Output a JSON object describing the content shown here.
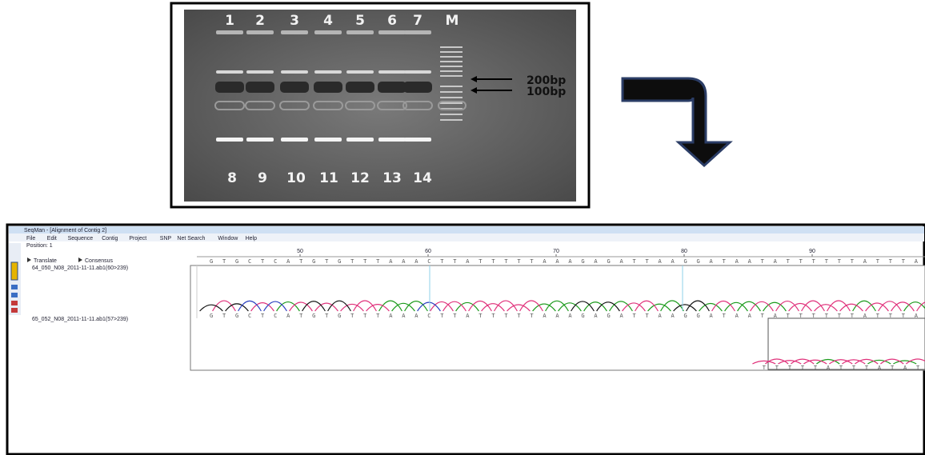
{
  "gel": {
    "top_lanes": [
      "1",
      "2",
      "3",
      "4",
      "5",
      "6",
      "7",
      "M"
    ],
    "bottom_lanes": [
      "8",
      "9",
      "10",
      "11",
      "12",
      "13",
      "14"
    ],
    "markers": [
      "200bp",
      "100bp"
    ]
  },
  "window": {
    "title": "SeqMan - [Alignment of Contig 2]",
    "menu": [
      "File",
      "Edit",
      "Sequence",
      "Contig",
      "Project",
      "SNP",
      "Net Search",
      "Window",
      "Help"
    ],
    "position": "Position: 1",
    "toolbar": [
      "Translate",
      "Consensus"
    ],
    "ruler": [
      50,
      60,
      70,
      80,
      90
    ],
    "consensus": "GTGCTCATGTGTTTAAACTTATTTTTAAAGAGATTAAGGATAATATTTTTTATTTATAT",
    "reads": [
      {
        "name": "64_050_N08_2011-11-11.ab1(60>239)",
        "sequence": "GTGCTCATGTGTTTAAACTTATTTTTAAAGAGATTAAGGATAATATTTTTTATTTATAT"
      },
      {
        "name": "65_052_N08_2011-11-11.ab1(57>239)",
        "sequence": "TTTTTATTTATAT"
      }
    ]
  }
}
